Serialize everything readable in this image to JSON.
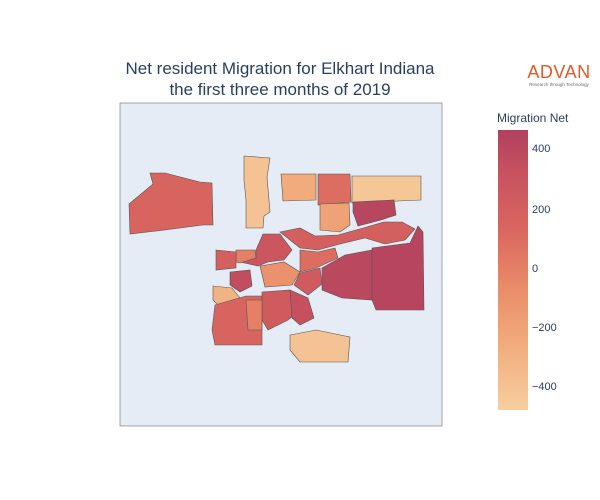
{
  "title": {
    "line1": "Net resident Migration for Elkhart Indiana",
    "line2": "the first three months of 2019"
  },
  "logo": {
    "wordmark": "ADVAN",
    "tagline": "Research through Technology",
    "color": "#e05a2b"
  },
  "colorbar": {
    "title": "Migration Net",
    "ticks": [
      "400",
      "200",
      "0",
      "−200",
      "−400"
    ],
    "tick_values": [
      400,
      200,
      0,
      -200,
      -400
    ],
    "range": [
      -480,
      480
    ],
    "colorscale": "sunsetdark (reversed)"
  },
  "map_background": "#e5ecf6",
  "chart_data": {
    "type": "choropleth",
    "title": "Net resident Migration for Elkhart Indiana the first three months of 2019",
    "value_label": "Migration Net",
    "range": [
      -480,
      480
    ],
    "regions": [
      {
        "id": "northwest-large",
        "value": 150
      },
      {
        "id": "north-strip",
        "value": -400
      },
      {
        "id": "north-small-1",
        "value": -250
      },
      {
        "id": "north-small-2",
        "value": 100
      },
      {
        "id": "north-small-3",
        "value": -200
      },
      {
        "id": "northeast-strip",
        "value": -420
      },
      {
        "id": "northeast-dark",
        "value": 430
      },
      {
        "id": "north-central",
        "value": 200
      },
      {
        "id": "central-1",
        "value": 300
      },
      {
        "id": "central-2",
        "value": 100
      },
      {
        "id": "central-3",
        "value": -100
      },
      {
        "id": "central-4",
        "value": 250
      },
      {
        "id": "central-5",
        "value": 0
      },
      {
        "id": "central-6",
        "value": 200
      },
      {
        "id": "east-large",
        "value": 420
      },
      {
        "id": "far-east",
        "value": 440
      },
      {
        "id": "west-small",
        "value": 380
      },
      {
        "id": "west-strip",
        "value": -300
      },
      {
        "id": "southwest",
        "value": 150
      },
      {
        "id": "south-1",
        "value": 250
      },
      {
        "id": "south-2",
        "value": 350
      },
      {
        "id": "south-3",
        "value": 0
      },
      {
        "id": "south-east",
        "value": -400
      }
    ]
  }
}
